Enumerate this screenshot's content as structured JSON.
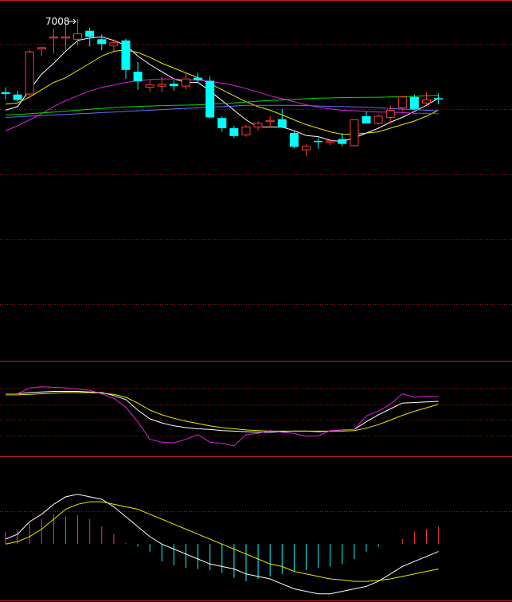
{
  "colors": {
    "background": "#000000",
    "up": "#ff3b3b",
    "down": "#00ffff",
    "grid": "#8b1a1a",
    "separator": "#c81e1e",
    "ma5": "#ffffff",
    "ma10": "#e8e800",
    "ma20": "#e020e0",
    "ma60": "#00e000",
    "ma120": "#6a6aff"
  },
  "chart_data": [
    {
      "type": "candlestick",
      "panel": "price",
      "peak_label": "7008",
      "ylim": [
        5180,
        7100
      ],
      "candles": [
        {
          "o": 6400,
          "h": 6440,
          "l": 6340,
          "c": 6385
        },
        {
          "o": 6380,
          "h": 6410,
          "l": 6320,
          "c": 6335
        },
        {
          "o": 6385,
          "h": 6750,
          "l": 6345,
          "c": 6735
        },
        {
          "o": 6760,
          "h": 6780,
          "l": 6700,
          "c": 6770
        },
        {
          "o": 6860,
          "h": 6925,
          "l": 6720,
          "c": 6860
        },
        {
          "o": 6850,
          "h": 6960,
          "l": 6750,
          "c": 6860
        },
        {
          "o": 6840,
          "h": 7008,
          "l": 6790,
          "c": 6885
        },
        {
          "o": 6910,
          "h": 6935,
          "l": 6780,
          "c": 6860
        },
        {
          "o": 6840,
          "h": 6880,
          "l": 6750,
          "c": 6800
        },
        {
          "o": 6790,
          "h": 6840,
          "l": 6730,
          "c": 6810
        },
        {
          "o": 6830,
          "h": 6845,
          "l": 6510,
          "c": 6585
        },
        {
          "o": 6570,
          "h": 6650,
          "l": 6420,
          "c": 6490
        },
        {
          "o": 6440,
          "h": 6500,
          "l": 6400,
          "c": 6460
        },
        {
          "o": 6450,
          "h": 6530,
          "l": 6400,
          "c": 6465
        },
        {
          "o": 6470,
          "h": 6500,
          "l": 6410,
          "c": 6450
        },
        {
          "o": 6450,
          "h": 6560,
          "l": 6420,
          "c": 6510
        },
        {
          "o": 6520,
          "h": 6560,
          "l": 6480,
          "c": 6500
        },
        {
          "o": 6495,
          "h": 6530,
          "l": 6180,
          "c": 6190
        },
        {
          "o": 6185,
          "h": 6200,
          "l": 6070,
          "c": 6100
        },
        {
          "o": 6100,
          "h": 6120,
          "l": 6020,
          "c": 6035
        },
        {
          "o": 6045,
          "h": 6130,
          "l": 6030,
          "c": 6110
        },
        {
          "o": 6110,
          "h": 6160,
          "l": 6080,
          "c": 6140
        },
        {
          "o": 6155,
          "h": 6200,
          "l": 6110,
          "c": 6165
        },
        {
          "o": 6175,
          "h": 6260,
          "l": 6100,
          "c": 6105
        },
        {
          "o": 6060,
          "h": 6075,
          "l": 5935,
          "c": 5945
        },
        {
          "o": 5920,
          "h": 5965,
          "l": 5870,
          "c": 5950
        },
        {
          "o": 5995,
          "h": 6020,
          "l": 5930,
          "c": 5990
        },
        {
          "o": 5995,
          "h": 6000,
          "l": 5960,
          "c": 5995
        },
        {
          "o": 6010,
          "h": 6060,
          "l": 5950,
          "c": 5970
        },
        {
          "o": 5955,
          "h": 6175,
          "l": 5950,
          "c": 6170
        },
        {
          "o": 6200,
          "h": 6240,
          "l": 6150,
          "c": 6140
        },
        {
          "o": 6140,
          "h": 6215,
          "l": 6130,
          "c": 6200
        },
        {
          "o": 6190,
          "h": 6290,
          "l": 6140,
          "c": 6250
        },
        {
          "o": 6270,
          "h": 6370,
          "l": 6240,
          "c": 6360
        },
        {
          "o": 6360,
          "h": 6380,
          "l": 6250,
          "c": 6260
        },
        {
          "o": 6310,
          "h": 6400,
          "l": 6290,
          "c": 6335
        },
        {
          "o": 6350,
          "h": 6390,
          "l": 6300,
          "c": 6345
        }
      ],
      "ma": [
        {
          "key": "ma5",
          "values": [
            6250,
            6280,
            6420,
            6550,
            6640,
            6740,
            6830,
            6850,
            6860,
            6830,
            6790,
            6700,
            6630,
            6570,
            6510,
            6480,
            6480,
            6410,
            6330,
            6250,
            6170,
            6110,
            6110,
            6110,
            6080,
            6040,
            6030,
            6000,
            5990,
            6020,
            6060,
            6100,
            6150,
            6190,
            6240,
            6290,
            6350
          ]
        },
        {
          "key": "ma10",
          "values": [
            6300,
            6310,
            6360,
            6420,
            6480,
            6520,
            6580,
            6640,
            6700,
            6740,
            6750,
            6730,
            6690,
            6640,
            6600,
            6560,
            6520,
            6470,
            6420,
            6370,
            6320,
            6280,
            6250,
            6210,
            6170,
            6130,
            6100,
            6070,
            6050,
            6050,
            6060,
            6070,
            6100,
            6130,
            6160,
            6200,
            6250
          ]
        },
        {
          "key": "ma20",
          "values": [
            6080,
            6120,
            6170,
            6220,
            6280,
            6330,
            6370,
            6410,
            6440,
            6460,
            6480,
            6495,
            6505,
            6510,
            6510,
            6505,
            6500,
            6490,
            6475,
            6455,
            6430,
            6400,
            6370,
            6345,
            6320,
            6295,
            6275,
            6260,
            6250,
            6245,
            6240,
            6235,
            6235,
            6230,
            6225,
            6225,
            6220
          ]
        },
        {
          "key": "ma60",
          "values": [
            6210,
            6215,
            6220,
            6228,
            6235,
            6242,
            6250,
            6258,
            6265,
            6272,
            6278,
            6282,
            6285,
            6288,
            6290,
            6292,
            6295,
            6300,
            6305,
            6310,
            6318,
            6325,
            6330,
            6335,
            6340,
            6345,
            6350,
            6352,
            6355,
            6356,
            6357,
            6358,
            6360,
            6362,
            6365,
            6370,
            6375
          ]
        },
        {
          "key": "ma120",
          "values": [
            6190,
            6195,
            6200,
            6205,
            6210,
            6215,
            6220,
            6225,
            6230,
            6235,
            6240,
            6245,
            6250,
            6255,
            6260,
            6265,
            6270,
            6275,
            6280,
            6285,
            6290,
            6290,
            6290,
            6290,
            6290,
            6288,
            6285,
            6282,
            6280,
            6278,
            6275,
            6270,
            6265,
            6260,
            6255,
            6250,
            6245
          ]
        }
      ]
    },
    {
      "type": "line",
      "panel": "kdj",
      "ylim": [
        -15,
        105
      ],
      "series": [
        {
          "key": "k",
          "values": [
            88,
            88,
            90,
            91,
            92,
            92,
            92,
            91,
            90,
            85,
            78,
            60,
            45,
            38,
            33,
            30,
            28,
            27,
            25,
            24,
            23,
            22,
            22,
            23,
            24,
            24,
            23,
            24,
            26,
            27,
            40,
            52,
            62,
            72,
            73,
            74,
            75
          ]
        },
        {
          "key": "d",
          "values": [
            86,
            86,
            87,
            88,
            89,
            90,
            90,
            90,
            89,
            87,
            82,
            72,
            60,
            52,
            46,
            41,
            37,
            33,
            30,
            28,
            26,
            25,
            24,
            24,
            24,
            24,
            24,
            24,
            24,
            25,
            29,
            35,
            43,
            51,
            58,
            64,
            70
          ]
        },
        {
          "key": "j",
          "values": [
            88,
            88,
            98,
            100,
            99,
            98,
            96,
            94,
            88,
            80,
            65,
            40,
            10,
            5,
            4,
            10,
            18,
            5,
            3,
            -1,
            18,
            20,
            25,
            22,
            20,
            15,
            16,
            25,
            26,
            27,
            50,
            58,
            70,
            88,
            82,
            84,
            83
          ]
        }
      ]
    },
    {
      "type": "bar+line",
      "panel": "macd",
      "ylim": [
        -110,
        130
      ],
      "macd_bars": [
        25,
        27,
        40,
        50,
        60,
        55,
        58,
        50,
        35,
        20,
        2,
        -5,
        -15,
        -35,
        -42,
        -48,
        -50,
        -52,
        -58,
        -68,
        -75,
        -70,
        -65,
        -60,
        -55,
        -52,
        -48,
        -45,
        -40,
        -30,
        -15,
        -5,
        0,
        10,
        25,
        30,
        35
      ],
      "series": [
        {
          "key": "dif",
          "values": [
            10,
            20,
            45,
            60,
            80,
            95,
            100,
            95,
            90,
            75,
            55,
            35,
            15,
            0,
            -10,
            -20,
            -30,
            -40,
            -45,
            -50,
            -60,
            -65,
            -70,
            -80,
            -90,
            -95,
            -100,
            -100,
            -95,
            -90,
            -85,
            -75,
            -60,
            -45,
            -35,
            -25,
            -15
          ]
        },
        {
          "key": "dea",
          "values": [
            0,
            5,
            15,
            30,
            50,
            70,
            80,
            85,
            85,
            80,
            75,
            70,
            60,
            50,
            40,
            30,
            20,
            10,
            0,
            -10,
            -20,
            -30,
            -40,
            -45,
            -55,
            -60,
            -65,
            -70,
            -72,
            -75,
            -75,
            -73,
            -70,
            -65,
            -60,
            -55,
            -50
          ]
        }
      ]
    }
  ]
}
